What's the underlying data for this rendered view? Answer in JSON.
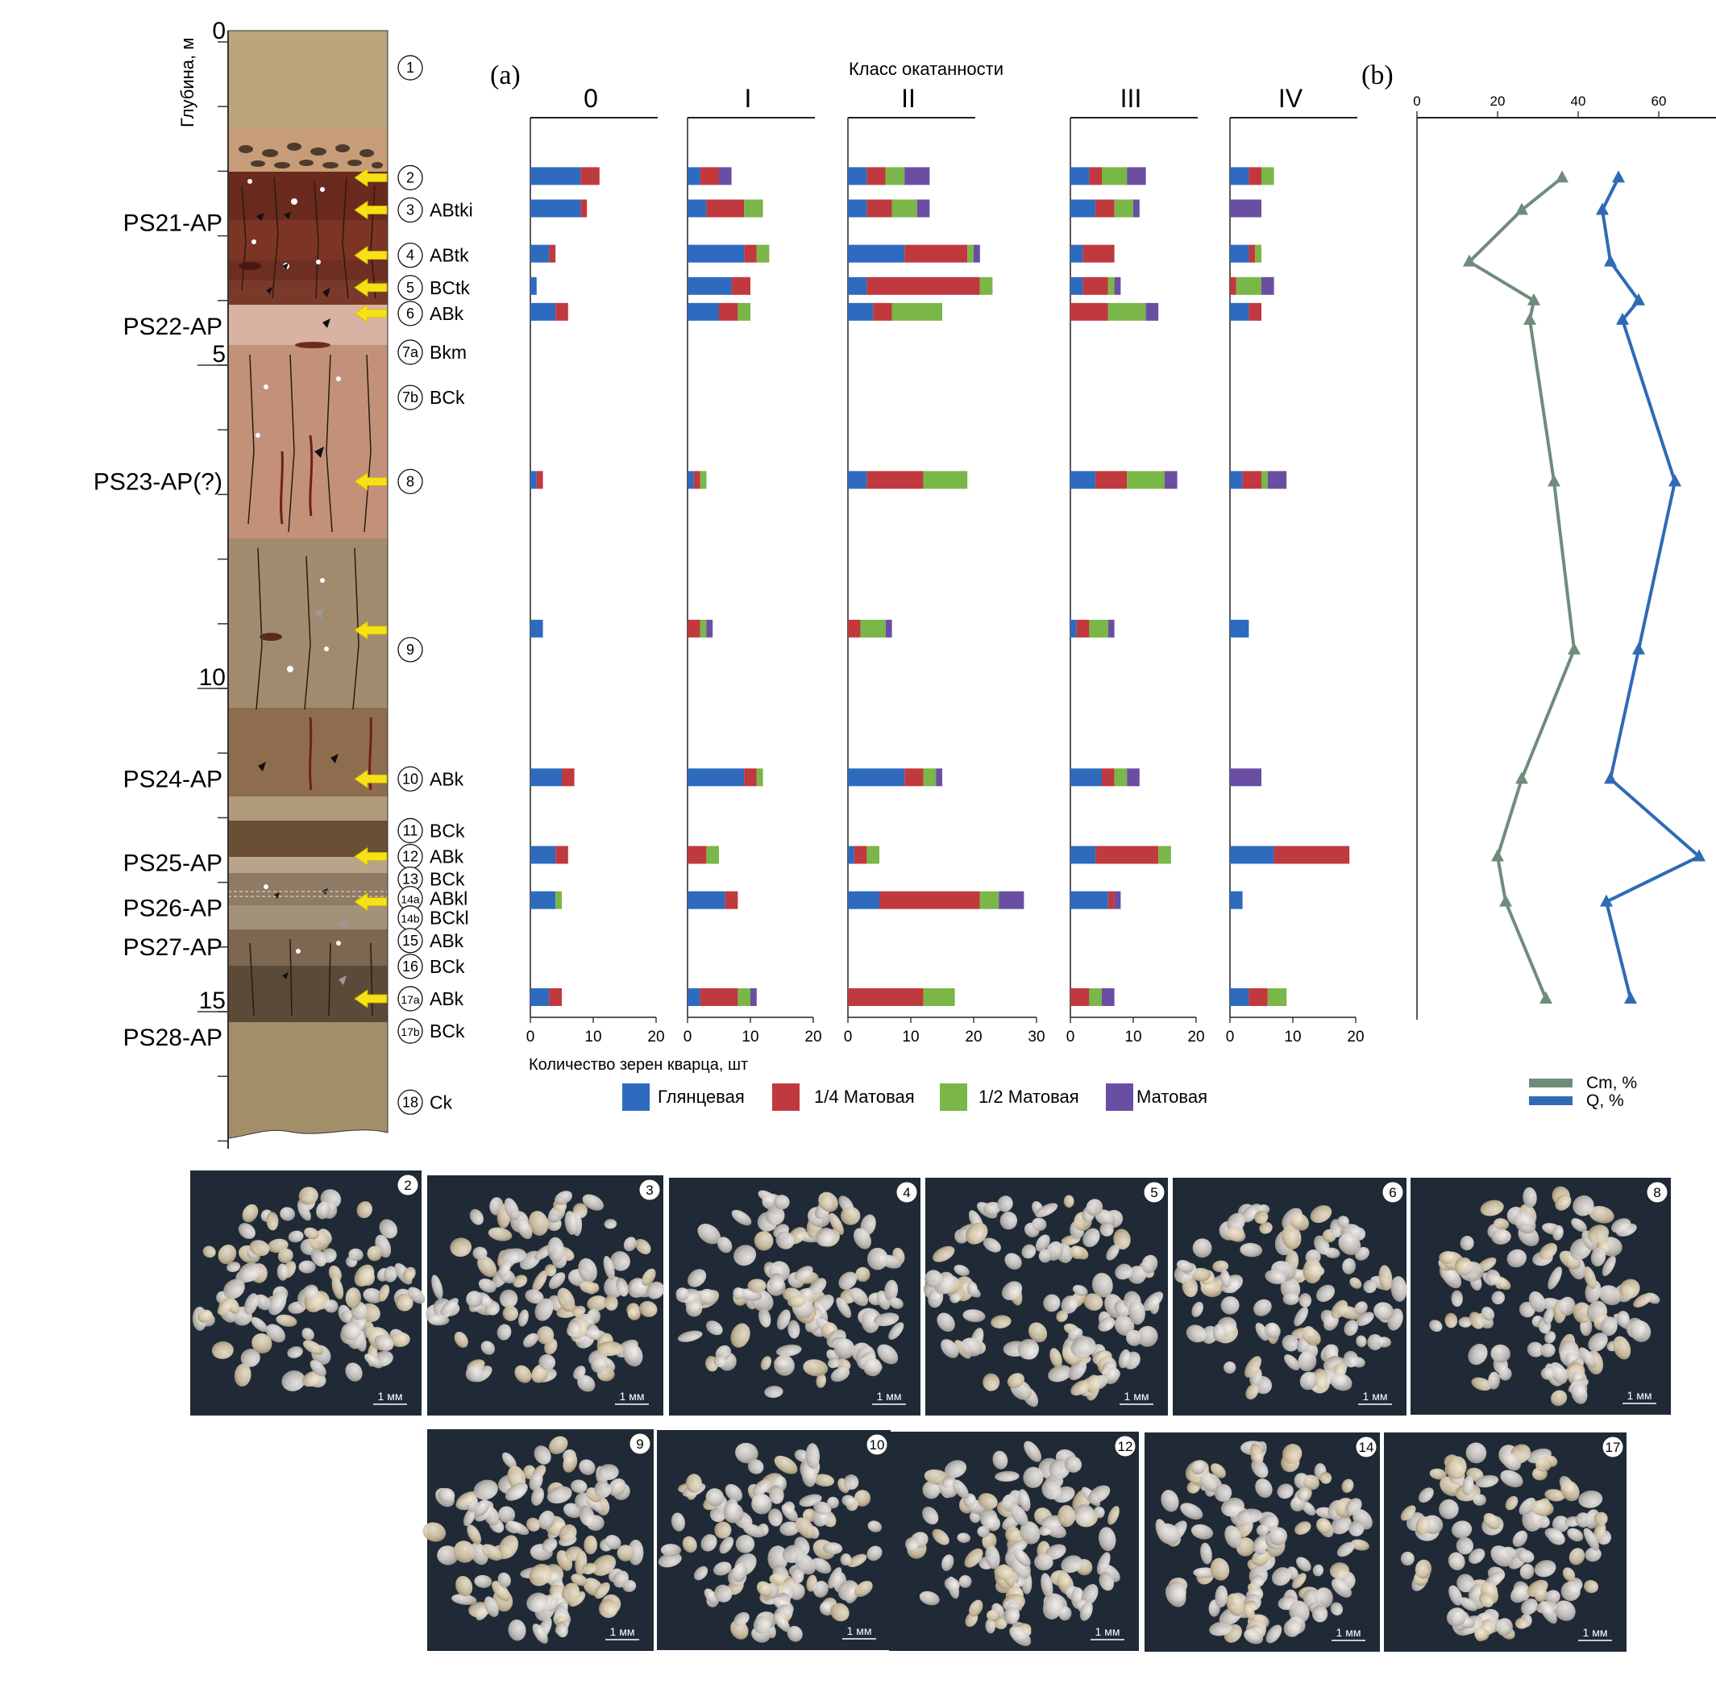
{
  "figure": {
    "panel_a_label": "(a)",
    "panel_b_label": "(b)"
  },
  "column": {
    "depth_axis_label": "Глубина, м",
    "depth_ticks": [
      {
        "depth": 0,
        "label": "0"
      },
      {
        "depth": 5,
        "label": "5"
      },
      {
        "depth": 10,
        "label": "10"
      },
      {
        "depth": 15,
        "label": "15"
      }
    ],
    "paleosols": [
      {
        "label": "PS21-AP",
        "depth": 2.8
      },
      {
        "label": "PS22-AP",
        "depth": 4.4
      },
      {
        "label": "PS23-AP(?)",
        "depth": 6.8
      },
      {
        "label": "PS24-AP",
        "depth": 11.4
      },
      {
        "label": "PS25-AP",
        "depth": 12.7
      },
      {
        "label": "PS26-AP",
        "depth": 13.4
      },
      {
        "label": "PS27-AP",
        "depth": 14.0
      },
      {
        "label": "PS28-AP",
        "depth": 15.4
      }
    ],
    "horizons": [
      {
        "num": "1",
        "name": "",
        "depth": 0.4
      },
      {
        "num": "2",
        "name": "",
        "depth": 2.1
      },
      {
        "num": "3",
        "name": "ABtki",
        "depth": 2.6
      },
      {
        "num": "4",
        "name": "ABtk",
        "depth": 3.3
      },
      {
        "num": "5",
        "name": "BCtk",
        "depth": 3.8
      },
      {
        "num": "6",
        "name": "ABk",
        "depth": 4.2
      },
      {
        "num": "7a",
        "name": "Bkm",
        "depth": 4.8
      },
      {
        "num": "7b",
        "name": "BCk",
        "depth": 5.5
      },
      {
        "num": "8",
        "name": "",
        "depth": 6.8
      },
      {
        "num": "9",
        "name": "",
        "depth": 9.4
      },
      {
        "num": "10",
        "name": "ABk",
        "depth": 11.4
      },
      {
        "num": "11",
        "name": "BCk",
        "depth": 12.2
      },
      {
        "num": "12",
        "name": "ABk",
        "depth": 12.6
      },
      {
        "num": "13",
        "name": "BCk",
        "depth": 12.95
      },
      {
        "num": "14a",
        "name": "ABkl",
        "depth": 13.25
      },
      {
        "num": "14b",
        "name": "BCkl",
        "depth": 13.55
      },
      {
        "num": "15",
        "name": "ABk",
        "depth": 13.9
      },
      {
        "num": "16",
        "name": "BCk",
        "depth": 14.3
      },
      {
        "num": "17a",
        "name": "ABk",
        "depth": 14.8
      },
      {
        "num": "17b",
        "name": "BCk",
        "depth": 15.3
      },
      {
        "num": "18",
        "name": "Ck",
        "depth": 16.4
      }
    ],
    "sample_arrows": [
      2.1,
      2.6,
      3.3,
      3.8,
      4.2,
      6.8,
      9.1,
      11.4,
      12.6,
      13.3,
      14.8
    ]
  },
  "chart_data": [
    {
      "type": "bar",
      "orientation": "horizontal",
      "stacked": true,
      "title": "Класс окатанности",
      "xlabel": "Количество зерен кварца, шт",
      "xlim": [
        0,
        20
      ],
      "x_ticks": [
        "0",
        "10",
        "20"
      ],
      "rows": [
        "2",
        "3",
        "4",
        "5",
        "6",
        "8",
        "9",
        "10",
        "12",
        "14",
        "17"
      ],
      "series_names": [
        "Глянцевая",
        "1/4 Матовая",
        "1/2 Матовая",
        "Матовая"
      ],
      "colors": [
        "#2e6bbf",
        "#c0393e",
        "#7ab648",
        "#6a4ea3"
      ],
      "panels": [
        {
          "label": "0",
          "xlim": [
            0,
            20
          ],
          "values": [
            [
              8,
              3,
              0,
              0
            ],
            [
              8,
              1,
              0,
              0
            ],
            [
              3,
              1,
              0,
              0
            ],
            [
              1,
              0,
              0,
              0
            ],
            [
              4,
              2,
              0,
              0
            ],
            [
              1,
              1,
              0,
              0
            ],
            [
              2,
              0,
              0,
              0
            ],
            [
              5,
              2,
              0,
              0
            ],
            [
              4,
              2,
              0,
              0
            ],
            [
              4,
              0,
              1,
              0
            ],
            [
              3,
              2,
              0,
              0
            ]
          ]
        },
        {
          "label": "I",
          "xlim": [
            0,
            20
          ],
          "values": [
            [
              2,
              3,
              0,
              2
            ],
            [
              3,
              6,
              3,
              0
            ],
            [
              9,
              2,
              2,
              0
            ],
            [
              7,
              3,
              0,
              0
            ],
            [
              5,
              3,
              2,
              0
            ],
            [
              1,
              1,
              1,
              0
            ],
            [
              0,
              2,
              1,
              1
            ],
            [
              9,
              2,
              1,
              0
            ],
            [
              0,
              3,
              2,
              0
            ],
            [
              6,
              2,
              0,
              0
            ],
            [
              2,
              6,
              2,
              1
            ]
          ]
        },
        {
          "label": "II",
          "xlim": [
            0,
            30
          ],
          "x_ticks": [
            "0",
            "10",
            "20",
            "30"
          ],
          "values": [
            [
              3,
              3,
              3,
              4
            ],
            [
              3,
              4,
              4,
              2
            ],
            [
              9,
              10,
              1,
              1
            ],
            [
              3,
              18,
              2,
              0
            ],
            [
              4,
              3,
              8,
              0
            ],
            [
              3,
              9,
              7,
              0
            ],
            [
              0,
              2,
              4,
              1
            ],
            [
              9,
              3,
              2,
              1
            ],
            [
              1,
              2,
              2,
              0
            ],
            [
              5,
              16,
              3,
              4
            ],
            [
              0,
              12,
              5,
              0
            ]
          ]
        },
        {
          "label": "III",
          "xlim": [
            0,
            20
          ],
          "values": [
            [
              3,
              2,
              4,
              3
            ],
            [
              4,
              3,
              3,
              1
            ],
            [
              2,
              5,
              0,
              0
            ],
            [
              2,
              4,
              1,
              1
            ],
            [
              0,
              6,
              6,
              2
            ],
            [
              4,
              5,
              6,
              2
            ],
            [
              1,
              2,
              3,
              1
            ],
            [
              5,
              2,
              2,
              2
            ],
            [
              4,
              10,
              2,
              0
            ],
            [
              6,
              1,
              0,
              1
            ],
            [
              0,
              3,
              2,
              2
            ]
          ]
        },
        {
          "label": "IV",
          "xlim": [
            0,
            20
          ],
          "values": [
            [
              3,
              2,
              2,
              0
            ],
            [
              0,
              0,
              0,
              5
            ],
            [
              3,
              1,
              1,
              0
            ],
            [
              0,
              1,
              4,
              2
            ],
            [
              3,
              2,
              0,
              0
            ],
            [
              2,
              3,
              1,
              3
            ],
            [
              3,
              0,
              0,
              0
            ],
            [
              0,
              0,
              0,
              5
            ],
            [
              7,
              12,
              0,
              0
            ],
            [
              2,
              0,
              0,
              0
            ],
            [
              3,
              3,
              3,
              0
            ]
          ]
        }
      ]
    },
    {
      "type": "line",
      "orientation": "vertical-profile",
      "xlim": [
        0,
        70
      ],
      "x_ticks": [
        "0",
        "20",
        "40",
        "60"
      ],
      "y": "depth (m)",
      "series": [
        {
          "name": "Cm, %",
          "color": "#6f8c7a",
          "points": [
            [
              36,
              2.1
            ],
            [
              26,
              2.6
            ],
            [
              13,
              3.4
            ],
            [
              29,
              4.0
            ],
            [
              28,
              4.3
            ],
            [
              34,
              6.8
            ],
            [
              39,
              9.4
            ],
            [
              26,
              11.4
            ],
            [
              20,
              12.6
            ],
            [
              22,
              13.3
            ],
            [
              32,
              14.8
            ]
          ]
        },
        {
          "name": "Q, %",
          "color": "#2f6ab5",
          "points": [
            [
              50,
              2.1
            ],
            [
              46,
              2.6
            ],
            [
              48,
              3.4
            ],
            [
              55,
              4.0
            ],
            [
              51,
              4.3
            ],
            [
              64,
              6.8
            ],
            [
              55,
              9.4
            ],
            [
              48,
              11.4
            ],
            [
              70,
              12.6
            ],
            [
              47,
              13.3
            ],
            [
              53,
              14.8
            ]
          ]
        }
      ]
    }
  ],
  "photos": {
    "scale_label": "1 мм",
    "row1": [
      "2",
      "3",
      "4",
      "5",
      "6",
      "8"
    ],
    "row2": [
      "9",
      "10",
      "12",
      "14",
      "17"
    ]
  }
}
